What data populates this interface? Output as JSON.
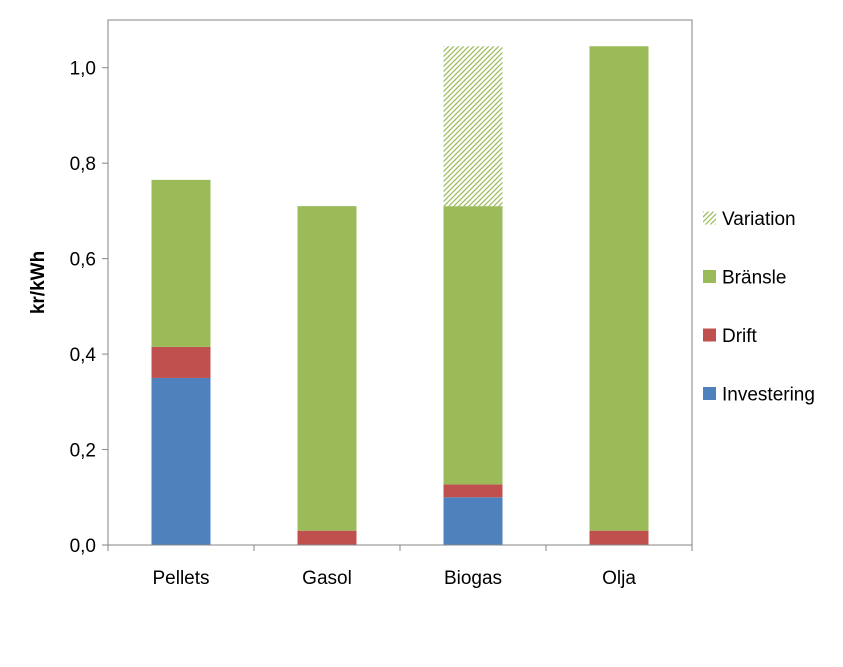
{
  "chart_data": {
    "type": "bar",
    "stacked": true,
    "title": "",
    "xlabel": "",
    "ylabel": "kr/kWh",
    "ylim": [
      0,
      1.1
    ],
    "yticks": [
      "0,0",
      "0,2",
      "0,4",
      "0,6",
      "0,8",
      "1,0"
    ],
    "ytick_values": [
      0,
      0.2,
      0.4,
      0.6,
      0.8,
      1.0
    ],
    "categories": [
      "Pellets",
      "Gasol",
      "Biogas",
      "Olja"
    ],
    "series": [
      {
        "name": "Investering",
        "color": "#4f81bd",
        "values": [
          0.35,
          0,
          0.1,
          0
        ]
      },
      {
        "name": "Drift",
        "color": "#c0504d",
        "values": [
          0.065,
          0.03,
          0.027,
          0.03
        ]
      },
      {
        "name": "Bränsle",
        "color": "#9bbb59",
        "values": [
          0.35,
          0.68,
          0.583,
          1.015
        ]
      },
      {
        "name": "Variation",
        "color": "#9bbb59",
        "pattern": "diagonal-hatch",
        "values": [
          0,
          0,
          0.335,
          0
        ]
      }
    ],
    "legend": {
      "placement": "right",
      "order": [
        "Variation",
        "Bränsle",
        "Drift",
        "Investering"
      ]
    },
    "grid": false
  }
}
